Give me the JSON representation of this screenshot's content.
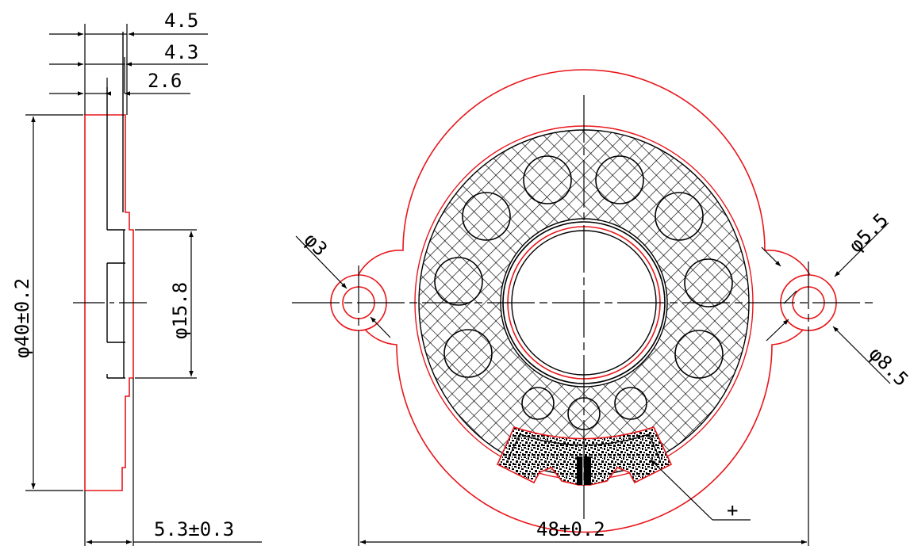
{
  "colors": {
    "outline": "#e8161b",
    "line": "#000000",
    "background": "#ffffff"
  },
  "side_view": {
    "dim_total_thickness": "4.5",
    "dim_step_thickness": "4.3",
    "dim_inner_thickness": "2.6",
    "dim_outer_diameter": "φ40±0.2",
    "dim_center_diameter": "φ15.8",
    "dim_overall_depth": "5.3±0.3"
  },
  "front_view": {
    "dim_hole_small": "φ3",
    "dim_hole_mid": "φ5.5",
    "dim_lug_outer": "φ8.5",
    "dim_hole_spacing": "48±0.2",
    "terminal_polarity": "+"
  }
}
